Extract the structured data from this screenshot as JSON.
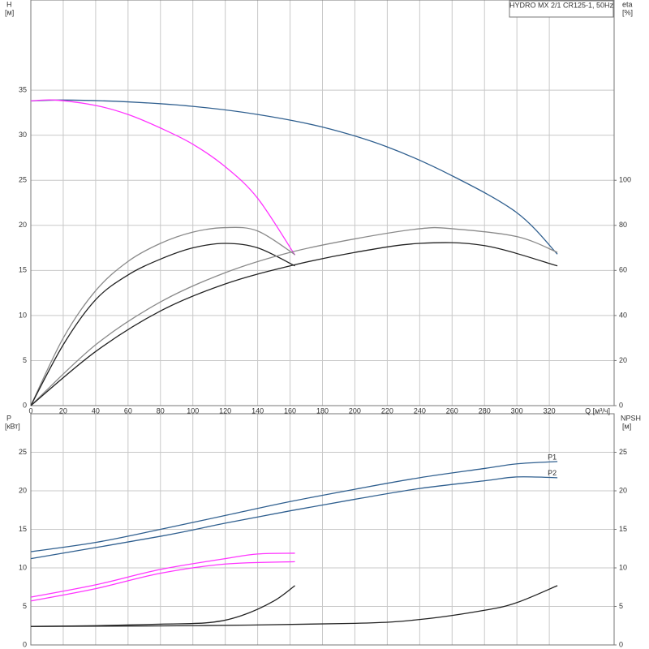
{
  "chart_data": [
    {
      "type": "line",
      "title": "HYDRO MX 2/1 CR125-1, 50Hz",
      "y_label": "H",
      "y_unit": "[м]",
      "y2_label": "eta",
      "y2_unit": "[%]",
      "x_label": "Q [м³/ч]",
      "xlim": [
        0,
        360
      ],
      "xticks": [
        0,
        20,
        40,
        60,
        80,
        100,
        120,
        140,
        160,
        180,
        200,
        220,
        240,
        260,
        280,
        300,
        320
      ],
      "ylim": [
        0,
        45
      ],
      "yticks": [
        0,
        5,
        10,
        15,
        20,
        25,
        30,
        35
      ],
      "y2lim": [
        0,
        180
      ],
      "y2ticks": [
        0,
        20,
        40,
        60,
        80,
        100
      ],
      "grid": true,
      "series": [
        {
          "color": "#2f5f8f",
          "x": [
            0,
            20,
            60,
            100,
            140,
            180,
            220,
            260,
            300,
            325
          ],
          "values": [
            33.8,
            33.9,
            33.7,
            33.2,
            32.3,
            30.9,
            28.7,
            25.5,
            21.4,
            16.8
          ]
        },
        {
          "color": "#ff33ff",
          "x": [
            0,
            15,
            40,
            60,
            80,
            100,
            120,
            140,
            163
          ],
          "values": [
            33.8,
            33.9,
            33.3,
            32.3,
            30.8,
            29,
            26.5,
            23,
            16.7
          ]
        },
        {
          "color": "#8a8a8a",
          "axis": "y2",
          "x": [
            0,
            20,
            40,
            60,
            80,
            100,
            120,
            140,
            163
          ],
          "values": [
            0,
            30,
            51,
            64,
            72,
            77,
            79,
            77.5,
            67
          ]
        },
        {
          "color": "#222222",
          "axis": "y2",
          "x": [
            0,
            20,
            40,
            60,
            80,
            100,
            120,
            140,
            163
          ],
          "values": [
            0,
            27,
            47,
            58,
            65,
            70,
            72,
            70,
            62
          ]
        },
        {
          "color": "#8a8a8a",
          "axis": "y2",
          "x": [
            0,
            40,
            80,
            120,
            160,
            200,
            240,
            260,
            300,
            325
          ],
          "values": [
            0,
            27,
            46,
            59,
            68,
            74,
            78.5,
            78.5,
            75,
            68
          ]
        },
        {
          "color": "#222222",
          "axis": "y2",
          "x": [
            0,
            40,
            80,
            120,
            160,
            200,
            240,
            280,
            325
          ],
          "values": [
            0,
            24,
            42,
            54,
            62,
            68,
            72,
            71,
            62
          ]
        }
      ]
    },
    {
      "type": "line",
      "y_label": "P",
      "y_unit": "[кВт]",
      "y2_label": "NPSH",
      "y2_unit": "[м]",
      "xlim": [
        0,
        360
      ],
      "ylim": [
        0,
        30
      ],
      "yticks": [
        0,
        5,
        10,
        15,
        20,
        25
      ],
      "y2lim": [
        0,
        30
      ],
      "y2ticks": [
        0,
        5,
        10,
        15,
        20,
        25
      ],
      "grid": true,
      "series": [
        {
          "name": "P1",
          "color": "#2f5f8f",
          "x": [
            0,
            40,
            80,
            120,
            160,
            200,
            240,
            280,
            300,
            325
          ],
          "values": [
            12.1,
            13.3,
            15,
            16.8,
            18.6,
            20.2,
            21.7,
            22.9,
            23.5,
            23.8
          ]
        },
        {
          "name": "P2",
          "color": "#2f5f8f",
          "x": [
            0,
            80,
            120,
            160,
            200,
            240,
            280,
            300,
            325
          ],
          "values": [
            11.2,
            14.1,
            15.8,
            17.4,
            18.9,
            20.3,
            21.3,
            21.8,
            21.7
          ]
        },
        {
          "color": "#ff33ff",
          "x": [
            0,
            40,
            80,
            120,
            140,
            163
          ],
          "values": [
            6.2,
            7.8,
            9.8,
            11.2,
            11.8,
            11.9
          ]
        },
        {
          "color": "#ff33ff",
          "x": [
            0,
            40,
            80,
            120,
            163
          ],
          "values": [
            5.7,
            7.3,
            9.3,
            10.5,
            10.8
          ]
        },
        {
          "color": "#222222",
          "axis": "y2",
          "x": [
            0,
            40,
            80,
            110,
            130,
            150,
            163
          ],
          "values": [
            2.4,
            2.5,
            2.7,
            2.9,
            3.8,
            5.7,
            7.7
          ]
        },
        {
          "color": "#222222",
          "axis": "y2",
          "x": [
            0,
            100,
            200,
            240,
            280,
            300,
            325
          ],
          "values": [
            2.4,
            2.5,
            2.8,
            3.3,
            4.5,
            5.5,
            7.7
          ]
        }
      ]
    }
  ]
}
